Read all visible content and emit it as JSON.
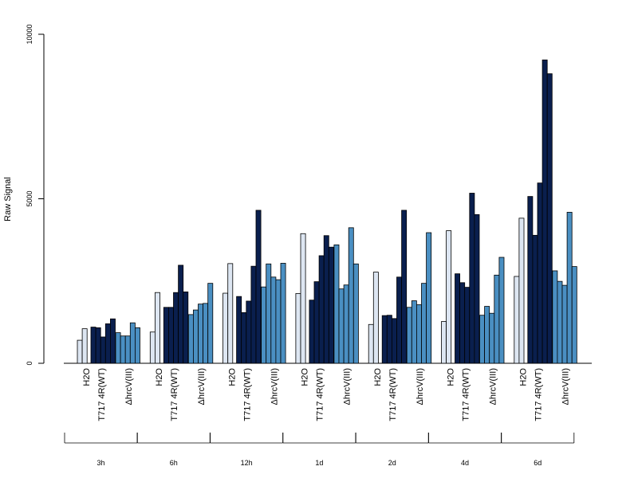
{
  "chart_data": {
    "type": "bar",
    "ylabel": "Raw Signal",
    "xlabel": "",
    "title": "",
    "ylim": [
      0,
      10000
    ],
    "yticks": [
      0,
      5000,
      10000
    ],
    "timepoints": [
      "3h",
      "6h",
      "12h",
      "1d",
      "2d",
      "4d",
      "6d"
    ],
    "treatments": [
      "H2O",
      "T717 4R(WT)",
      "ΔhrcV(III)"
    ],
    "colors": {
      "H2O": "#dde6f2",
      "T717 4R(WT)": "#0a1f4e",
      "ΔhrcV(III)": "#4a8fc2"
    },
    "groups": [
      {
        "timepoint": "3h",
        "H2O": [
          700,
          1050
        ],
        "T717 4R(WT)": [
          1100,
          1080,
          800,
          1200,
          1350
        ],
        "ΔhrcV(III)": [
          930,
          830,
          830,
          1230,
          1080
        ]
      },
      {
        "timepoint": "6h",
        "H2O": [
          950,
          2150
        ],
        "T717 4R(WT)": [
          1700,
          1700,
          2150,
          2980,
          2170
        ],
        "ΔhrcV(III)": [
          1480,
          1620,
          1800,
          1820,
          2430
        ]
      },
      {
        "timepoint": "12h",
        "H2O": [
          2130,
          3030
        ],
        "T717 4R(WT)": [
          2030,
          1540,
          1890,
          2950,
          4650
        ],
        "ΔhrcV(III)": [
          2320,
          3020,
          2620,
          2540,
          3040
        ]
      },
      {
        "timepoint": "1d",
        "H2O": [
          2120,
          3940
        ],
        "T717 4R(WT)": [
          1920,
          2480,
          3270,
          3880,
          3530
        ],
        "ΔhrcV(III)": [
          3600,
          2260,
          2380,
          4120,
          3020
        ]
      },
      {
        "timepoint": "2d",
        "H2O": [
          1180,
          2770
        ],
        "T717 4R(WT)": [
          1450,
          1460,
          1360,
          2620,
          4650
        ],
        "ΔhrcV(III)": [
          1700,
          1900,
          1780,
          2430,
          3970
        ]
      },
      {
        "timepoint": "4d",
        "H2O": [
          1270,
          4030
        ],
        "T717 4R(WT)": [
          2720,
          2450,
          2310,
          5170,
          4520
        ],
        "ΔhrcV(III)": [
          1460,
          1730,
          1520,
          2680,
          3220
        ]
      },
      {
        "timepoint": "6d",
        "H2O": [
          2640,
          4410
        ],
        "T717 4R(WT)": [
          5070,
          3890,
          5480,
          9220,
          8800
        ],
        "ΔhrcV(III)": [
          2810,
          2490,
          2370,
          4590,
          2940
        ]
      }
    ]
  }
}
